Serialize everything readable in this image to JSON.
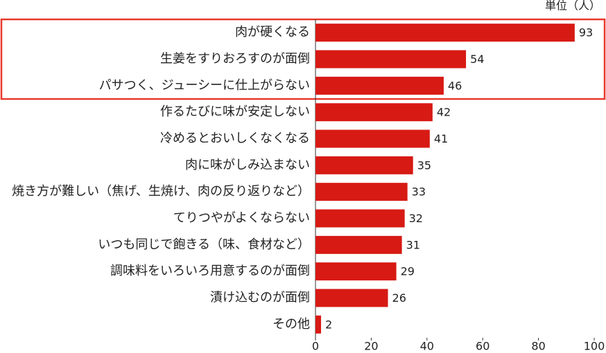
{
  "chart_data": {
    "type": "bar",
    "orientation": "horizontal",
    "unit": "単位（人）",
    "categories": [
      "肉が硬くなる",
      "生姜をすりおろすのが面倒",
      "パサつく、ジューシーに仕上がらない",
      "作るたびに味が安定しない",
      "冷めるとおいしくなくなる",
      "肉に味がしみ込まない",
      "焼き方が難しい（焦げ、生焼け、肉の反り返りなど）",
      "てりつやがよくならない",
      "いつも同じで飽きる（味、食材など）",
      "調味料をいろいろ用意するのが面倒",
      "漬け込むのが面倒",
      "その他"
    ],
    "values": [
      93,
      54,
      46,
      42,
      41,
      35,
      33,
      32,
      31,
      29,
      26,
      2
    ],
    "color": "#d71a14",
    "xlim": [
      0,
      100
    ],
    "xticks": [
      0,
      20,
      40,
      60,
      80,
      100
    ]
  }
}
